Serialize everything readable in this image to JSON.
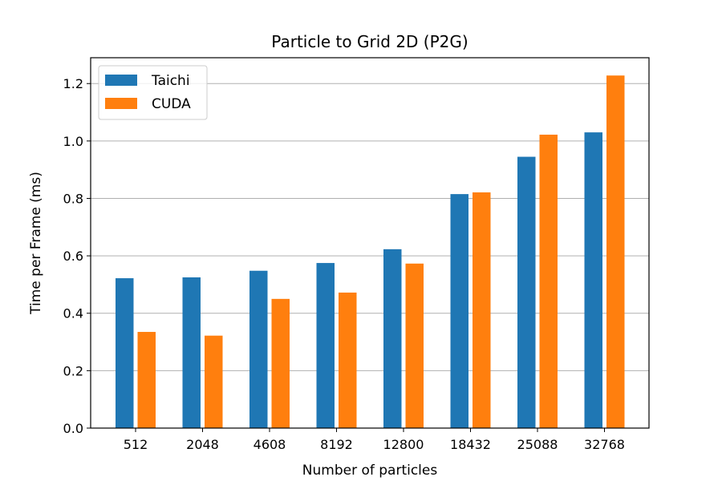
{
  "chart_data": {
    "type": "bar",
    "title": "Particle to Grid 2D (P2G)",
    "xlabel": "Number of particles",
    "ylabel": "Time per Frame (ms)",
    "categories": [
      "512",
      "2048",
      "4608",
      "8192",
      "12800",
      "18432",
      "25088",
      "32768"
    ],
    "series": [
      {
        "name": "Taichi",
        "color": "#1f77b4",
        "values": [
          0.522,
          0.525,
          0.548,
          0.575,
          0.623,
          0.815,
          0.945,
          1.03
        ]
      },
      {
        "name": "CUDA",
        "color": "#ff7f0e",
        "values": [
          0.335,
          0.322,
          0.45,
          0.472,
          0.573,
          0.821,
          1.022,
          1.228
        ]
      }
    ],
    "ylim": [
      0,
      1.29
    ],
    "yticks": [
      "0.0",
      "0.2",
      "0.4",
      "0.6",
      "0.8",
      "1.0",
      "1.2"
    ],
    "grid": "horizontal",
    "legend_position": "top-left"
  }
}
